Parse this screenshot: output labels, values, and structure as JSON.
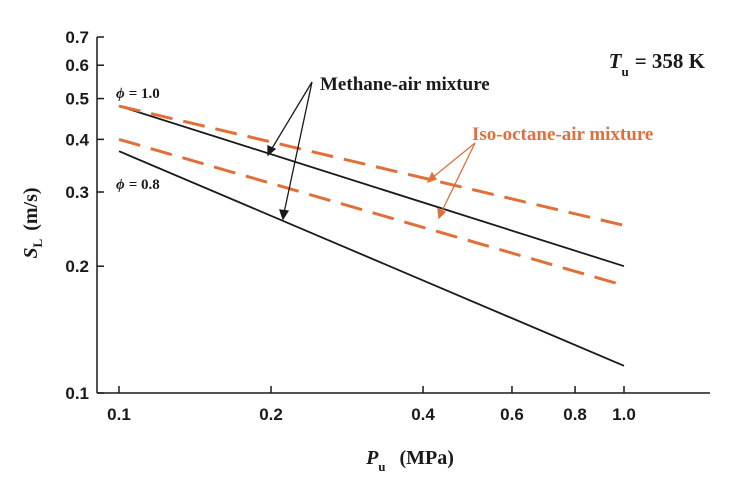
{
  "chart_data": {
    "type": "line",
    "x_scale": "log",
    "y_scale": "log",
    "xlim": [
      0.1,
      1.0
    ],
    "ylim": [
      0.1,
      0.7
    ],
    "x_ticks": [
      0.1,
      0.2,
      0.4,
      0.6,
      0.8,
      1.0
    ],
    "x_tick_labels": [
      "0.1",
      "0.2",
      "0.4",
      "0.6",
      "0.8",
      "1.0"
    ],
    "y_ticks": [
      0.1,
      0.2,
      0.3,
      0.4,
      0.5,
      0.6,
      0.7
    ],
    "y_tick_labels": [
      "0.1",
      "0.2",
      "0.3",
      "0.4",
      "0.5",
      "0.6",
      "0.7"
    ],
    "xlabel": {
      "main": "P",
      "sub": "u",
      "unit": "(MPa)"
    },
    "ylabel": {
      "main": "S",
      "sub": "L",
      "unit": "(m/s)"
    },
    "grid": false,
    "condition": {
      "main": "T",
      "sub": "u",
      "value": "= 358 K"
    },
    "colors": {
      "methane": "#1a1a1a",
      "isooctane": "#e0703a"
    },
    "series": [
      {
        "fuel": "methane",
        "phi": "1.0",
        "style": "solid",
        "x": [
          0.1,
          1.0
        ],
        "y": [
          0.48,
          0.2
        ]
      },
      {
        "fuel": "methane",
        "phi": "0.8",
        "style": "solid",
        "x": [
          0.1,
          1.0
        ],
        "y": [
          0.375,
          0.116
        ]
      },
      {
        "fuel": "iso-octane",
        "phi": "1.0",
        "style": "dashed",
        "x": [
          0.1,
          1.0
        ],
        "y": [
          0.48,
          0.25
        ]
      },
      {
        "fuel": "iso-octane",
        "phi": "0.8",
        "style": "dashed",
        "x": [
          0.1,
          1.0
        ],
        "y": [
          0.4,
          0.18
        ]
      }
    ],
    "annotations": {
      "methane": "Methane-air mixture",
      "isooctane": "Iso-octane-air mixture",
      "phi_high": "= 1.0",
      "phi_low": "= 0.8",
      "phi_symbol": "ϕ"
    }
  }
}
